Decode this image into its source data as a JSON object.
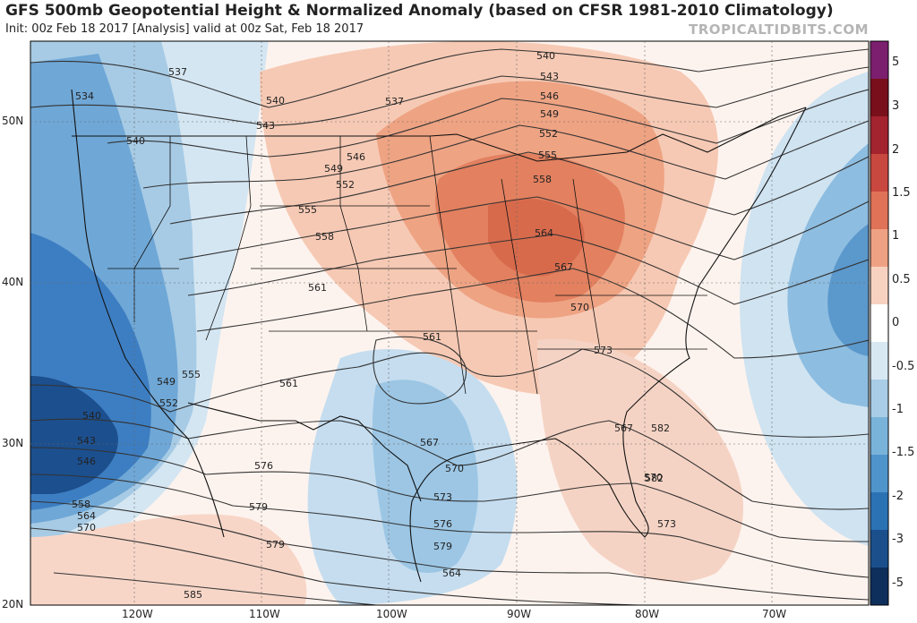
{
  "header": {
    "title": "GFS 500mb Geopotential Height & Normalized Anomaly (based on CFSR 1981-2010 Climatology)",
    "subtitle": "Init: 00z Feb 18 2017   [Analysis]   valid at 00z Sat, Feb 18 2017",
    "brand": "TROPICALTIDBITS.COM"
  },
  "colorbar": {
    "labels": [
      "5",
      "3",
      "2",
      "1.5",
      "1",
      "0.5",
      "0",
      "-0.5",
      "-1",
      "-1.5",
      "-2",
      "-3",
      "-5"
    ],
    "colors": [
      "#7b1f6e",
      "#7a0f1c",
      "#a3232e",
      "#c8473f",
      "#df7257",
      "#efa184",
      "#f8d2c0",
      "#ffffff",
      "#d8e8f3",
      "#a9cde6",
      "#7ab3da",
      "#4f95cc",
      "#2b72b5",
      "#1a4f8b",
      "#0e2f5c"
    ]
  },
  "axes": {
    "lat_labels": [
      "50N",
      "40N",
      "30N",
      "20N"
    ],
    "lon_labels": [
      "120W",
      "110W",
      "100W",
      "90W",
      "80W",
      "70W"
    ]
  },
  "contour_labels": [
    "537",
    "534",
    "540",
    "540",
    "543",
    "537",
    "540",
    "543",
    "546",
    "549",
    "552",
    "555",
    "558",
    "546",
    "549",
    "552",
    "555",
    "558",
    "561",
    "564",
    "567",
    "570",
    "573",
    "555",
    "549",
    "552",
    "540",
    "543",
    "546",
    "558",
    "564",
    "570",
    "561",
    "561",
    "567",
    "570",
    "573",
    "576",
    "579",
    "564",
    "567",
    "570",
    "573",
    "576",
    "579",
    "579",
    "582",
    "585",
    "582"
  ]
}
